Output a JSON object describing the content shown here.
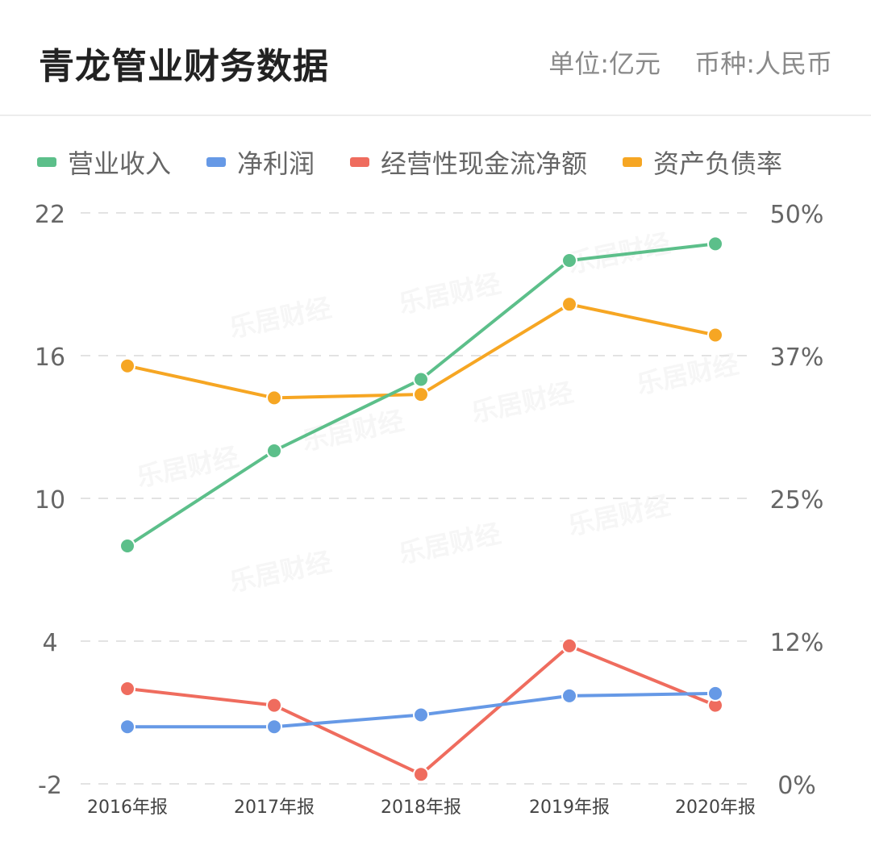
{
  "header": {
    "title": "青龙管业财务数据",
    "unit": "单位:亿元",
    "currency": "币种:人民币"
  },
  "chart_data": {
    "type": "line",
    "categories": [
      "2016年报",
      "2017年报",
      "2018年报",
      "2019年报",
      "2020年报"
    ],
    "y_left": {
      "ticks": [
        "22",
        "16",
        "10",
        "4",
        "-2"
      ],
      "range": [
        -2,
        22
      ]
    },
    "y_right": {
      "ticks": [
        "50%",
        "37%",
        "25%",
        "12%",
        "0%"
      ],
      "range": [
        0,
        50
      ]
    },
    "grid": "dashed horizontal",
    "legend_position": "top-left",
    "series": [
      {
        "name": "营业收入",
        "axis": "left",
        "color": "#5cbf8a",
        "values": [
          8.0,
          12.0,
          15.0,
          20.0,
          20.7
        ]
      },
      {
        "name": "净利润",
        "axis": "left",
        "color": "#6699e6",
        "values": [
          0.4,
          0.4,
          0.9,
          1.7,
          1.8
        ]
      },
      {
        "name": "经营性现金流净额",
        "axis": "left",
        "color": "#ef6c5e",
        "values": [
          2.0,
          1.3,
          -1.6,
          3.8,
          1.3
        ]
      },
      {
        "name": "资产负债率",
        "axis": "right",
        "color": "#f6a623",
        "values": [
          36.6,
          33.8,
          34.1,
          42.0,
          39.3
        ]
      }
    ],
    "watermark": "乐居财经"
  }
}
